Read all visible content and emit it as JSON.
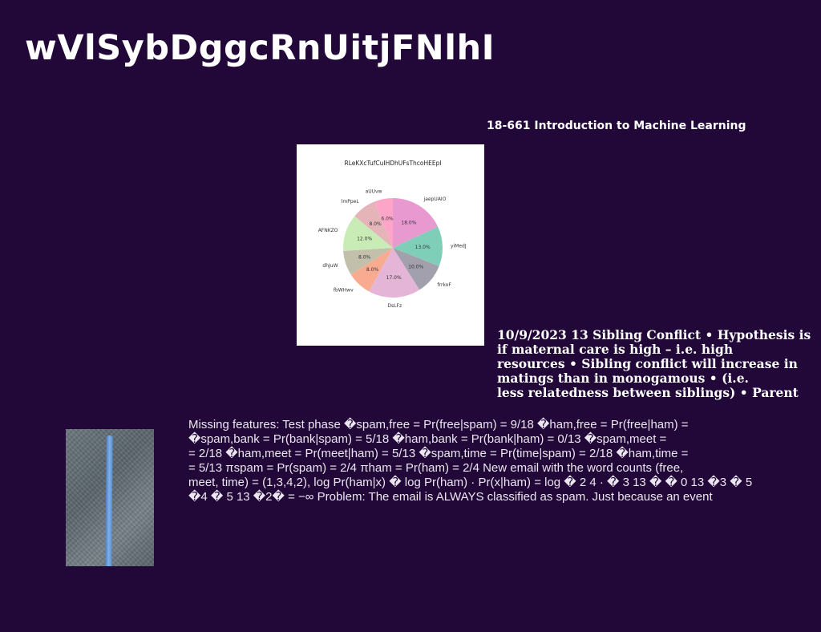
{
  "page": {
    "title": "wVlSybDggcRnUitjFNlhI",
    "subtitle": "18-661 Introduction to Machine Learning"
  },
  "text_block_1": {
    "lines": [
      "10/9/2023 13 Sibling Conflict • Hypothesis is",
      "if maternal care is high – i.e. high",
      "resources • Sibling conflict will increase in",
      "matings than in monogamous • (i.e.",
      "less relatedness between siblings) • Parent"
    ]
  },
  "text_block_2": {
    "lines": [
      "Missing features: Test phase �spam,free = Pr(free|spam) = 9/18 �ham,free = Pr(free|ham) =",
      "�spam,bank = Pr(bank|spam) = 5/18 �ham,bank = Pr(bank|ham) = 0/13 �spam,meet =",
      "= 2/18 �ham,meet = Pr(meet|ham) = 5/13 �spam,time = Pr(time|spam) = 2/18 �ham,time =",
      "= 5/13 πspam = Pr(spam) = 2/4 πham = Pr(ham) = 2/4 New email with the word counts (free,",
      "meet, time) = (1,3,4,2), log Pr(ham|x) � log Pr(ham) · Pr(x|ham) = log � 2 4 · � 3 13 � � 0 13 �3 � 5",
      "�4 � 5 13 �2� = −∞ Problem: The email is ALWAYS classified as spam. Just because an event"
    ]
  },
  "photo": {
    "icon": "road-stripe-photo"
  },
  "chart_data": {
    "type": "pie",
    "title": "RLeKXcTufCuIHDhUFsThcoHEEpl",
    "categories": [
      "jaepUAIO",
      "yiMedJ",
      "frrkoF",
      "DsLFz",
      "fbWHwv",
      "dhJuW",
      "AFNKZO",
      "lmPpeL",
      "aUUvw"
    ],
    "values": [
      18.0,
      13.0,
      10.0,
      17.0,
      8.0,
      8.0,
      12.0,
      8.0,
      6.0
    ],
    "value_labels": [
      "18.0%",
      "13.0%",
      "10.0%",
      "17.0%",
      "8.0%",
      "8.0%",
      "12.0%",
      "8.0%",
      "6.0%"
    ],
    "colors": [
      "#e89ad0",
      "#7fcfb8",
      "#a3a0ad",
      "#e5b5d8",
      "#f8ab91",
      "#c2c0aa",
      "#c9ecb6",
      "#e4b4b9",
      "#fca5c8"
    ],
    "start_angle": "top, clockwise",
    "legend": "none"
  }
}
